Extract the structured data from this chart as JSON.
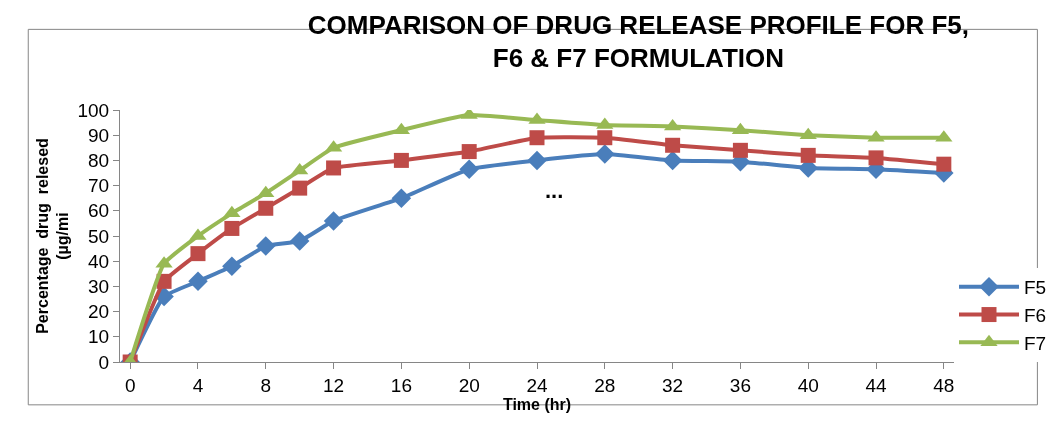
{
  "chart_data": {
    "type": "line",
    "title": "COMPARISON OF DRUG RELEASE PROFILE FOR F5, F6 & F7 FORMULATION",
    "xlabel": "Time (hr)",
    "ylabel": "Percentage  drug  relesed (µg/mi",
    "annotations": [
      "..."
    ],
    "x": [
      0,
      2,
      4,
      6,
      8,
      10,
      12,
      16,
      20,
      24,
      28,
      32,
      36,
      40,
      44,
      48
    ],
    "series": [
      {
        "name": "F5",
        "color": "#4a7ebb",
        "marker": "diamond",
        "values": [
          0,
          26,
          32,
          38,
          46,
          48,
          56,
          65,
          76.5,
          80,
          82.5,
          80,
          79.5,
          77,
          76.5,
          75
        ]
      },
      {
        "name": "F6",
        "color": "#be4b48",
        "marker": "square",
        "values": [
          0,
          32,
          43,
          53,
          61,
          69,
          77,
          80,
          83.5,
          89,
          89,
          86,
          84,
          82,
          81,
          78.5
        ]
      },
      {
        "name": "F7",
        "color": "#98b954",
        "marker": "triangle",
        "values": [
          0,
          39,
          50,
          59,
          67,
          76,
          85,
          92,
          98,
          96,
          94,
          93.5,
          92,
          90,
          89,
          89
        ]
      }
    ],
    "xlim": [
      -0.6,
      48.6
    ],
    "xticks": [
      0,
      4,
      8,
      12,
      16,
      20,
      24,
      28,
      32,
      36,
      40,
      44,
      48
    ],
    "ylim": [
      0,
      100
    ],
    "yticks": [
      0,
      10,
      20,
      30,
      40,
      50,
      60,
      70,
      80,
      90,
      100
    ],
    "legend": "right"
  }
}
